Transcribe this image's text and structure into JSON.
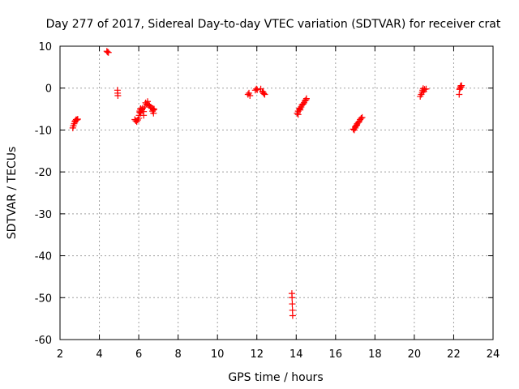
{
  "chart_data": {
    "type": "scatter",
    "title": "Day 277 of 2017, Sidereal Day-to-day VTEC variation (SDTVAR) for receiver crat",
    "xlabel": "GPS time / hours",
    "ylabel": "SDTVAR / TECUs",
    "xlim": [
      2,
      24
    ],
    "ylim": [
      -60,
      10
    ],
    "xticks": [
      2,
      4,
      6,
      8,
      10,
      12,
      14,
      16,
      18,
      20,
      22,
      24
    ],
    "yticks": [
      10,
      0,
      -10,
      -20,
      -30,
      -40,
      -50,
      -60
    ],
    "xtick_labels": [
      "2",
      "4",
      "6",
      "8",
      "10",
      "12",
      "14",
      "16",
      "18",
      "20",
      "22",
      "24"
    ],
    "ytick_labels": [
      "10",
      "0",
      "-10",
      "-20",
      "-30",
      "-40",
      "-50",
      "-60"
    ],
    "grid": true,
    "marker": "plus",
    "color": "#ff0000",
    "series": [
      {
        "name": "SDTVAR",
        "points": [
          [
            2.65,
            -9.5
          ],
          [
            2.68,
            -9.0
          ],
          [
            2.72,
            -8.5
          ],
          [
            2.75,
            -8.0
          ],
          [
            2.78,
            -7.8
          ],
          [
            2.82,
            -7.5
          ],
          [
            2.86,
            -7.6
          ],
          [
            2.9,
            -7.4
          ],
          [
            4.38,
            8.8
          ],
          [
            4.42,
            8.6
          ],
          [
            4.46,
            8.5
          ],
          [
            4.92,
            -0.5
          ],
          [
            4.93,
            -1.2
          ],
          [
            4.94,
            -1.8
          ],
          [
            5.8,
            -7.5
          ],
          [
            5.85,
            -7.8
          ],
          [
            5.9,
            -8.0
          ],
          [
            5.95,
            -7.6
          ],
          [
            6.0,
            -7.2
          ],
          [
            6.02,
            -6.5
          ],
          [
            6.05,
            -5.5
          ],
          [
            6.08,
            -5.0
          ],
          [
            6.1,
            -6.0
          ],
          [
            6.15,
            -5.2
          ],
          [
            6.2,
            -4.8
          ],
          [
            6.25,
            -5.6
          ],
          [
            6.3,
            -4.5
          ],
          [
            6.35,
            -3.5
          ],
          [
            6.4,
            -3.8
          ],
          [
            6.45,
            -3.2
          ],
          [
            6.5,
            -4.0
          ],
          [
            6.55,
            -4.2
          ],
          [
            6.6,
            -4.5
          ],
          [
            6.65,
            -4.8
          ],
          [
            6.7,
            -5.5
          ],
          [
            6.72,
            -4.9
          ],
          [
            6.75,
            -5.2
          ],
          [
            6.78,
            -5.0
          ],
          [
            6.25,
            -6.5
          ],
          [
            6.05,
            -5.8
          ],
          [
            6.1,
            -4.9
          ],
          [
            6.75,
            -6.0
          ],
          [
            11.55,
            -1.5
          ],
          [
            11.6,
            -1.2
          ],
          [
            11.65,
            -1.8
          ],
          [
            11.92,
            -0.5
          ],
          [
            11.98,
            -0.2
          ],
          [
            12.02,
            -0.4
          ],
          [
            12.2,
            -0.2
          ],
          [
            12.28,
            -0.8
          ],
          [
            12.35,
            -1.3
          ],
          [
            12.4,
            -1.5
          ],
          [
            12.32,
            -1.0
          ],
          [
            13.78,
            -49.0
          ],
          [
            13.79,
            -50.0
          ],
          [
            13.8,
            -51.5
          ],
          [
            13.81,
            -53.0
          ],
          [
            13.82,
            -54.3
          ],
          [
            14.05,
            -6.0
          ],
          [
            14.1,
            -5.5
          ],
          [
            14.15,
            -5.0
          ],
          [
            14.2,
            -4.8
          ],
          [
            14.25,
            -4.5
          ],
          [
            14.3,
            -4.0
          ],
          [
            14.35,
            -3.8
          ],
          [
            14.4,
            -3.5
          ],
          [
            14.45,
            -3.0
          ],
          [
            14.5,
            -2.8
          ],
          [
            14.52,
            -2.5
          ],
          [
            14.1,
            -6.3
          ],
          [
            14.2,
            -5.2
          ],
          [
            16.9,
            -9.8
          ],
          [
            16.95,
            -10.0
          ],
          [
            17.0,
            -9.5
          ],
          [
            17.05,
            -9.0
          ],
          [
            17.1,
            -8.5
          ],
          [
            17.15,
            -8.2
          ],
          [
            17.2,
            -8.0
          ],
          [
            17.25,
            -7.5
          ],
          [
            17.3,
            -7.2
          ],
          [
            17.35,
            -7.0
          ],
          [
            17.0,
            -9.2
          ],
          [
            17.08,
            -8.8
          ],
          [
            20.3,
            -2.0
          ],
          [
            20.35,
            -1.5
          ],
          [
            20.4,
            -1.0
          ],
          [
            20.42,
            -0.5
          ],
          [
            20.48,
            -0.8
          ],
          [
            20.52,
            -0.3
          ],
          [
            20.6,
            -0.2
          ],
          [
            20.45,
            -0.1
          ],
          [
            22.28,
            -1.5
          ],
          [
            22.3,
            -0.3
          ],
          [
            22.32,
            0.0
          ],
          [
            22.35,
            0.5
          ],
          [
            22.38,
            0.2
          ],
          [
            22.4,
            0.6
          ]
        ]
      }
    ]
  }
}
